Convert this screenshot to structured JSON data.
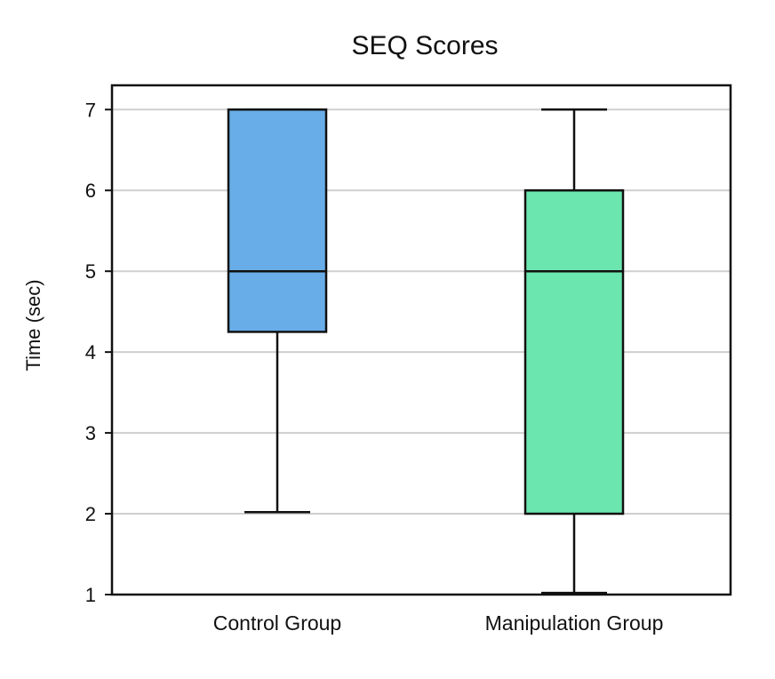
{
  "chart_data": {
    "type": "box",
    "title": "SEQ Scores",
    "xlabel": "",
    "ylabel": "Time (sec)",
    "ylim": [
      1,
      7.3
    ],
    "yticks": [
      1,
      2,
      3,
      4,
      5,
      6,
      7
    ],
    "grid": "horizontal",
    "categories": [
      "Control Group",
      "Manipulation Group"
    ],
    "series": [
      {
        "category": "Control Group",
        "whisker_low": 2.02,
        "q1": 4.25,
        "median": 5,
        "q3": 7,
        "whisker_high": 7,
        "color": "#68ADE8"
      },
      {
        "category": "Manipulation Group",
        "whisker_low": 1.02,
        "q1": 2,
        "median": 5,
        "q3": 6,
        "whisker_high": 7,
        "color": "#6BE6AE"
      }
    ]
  }
}
